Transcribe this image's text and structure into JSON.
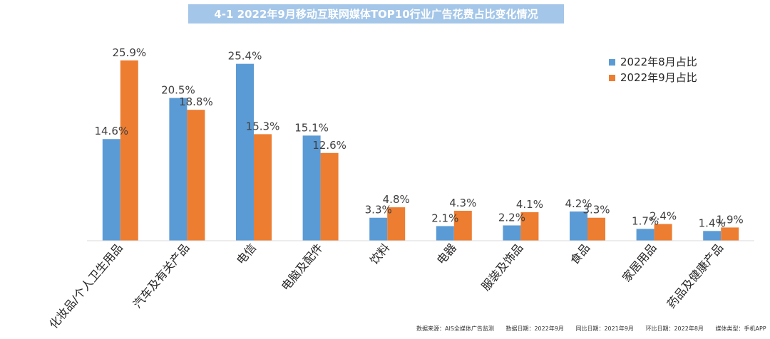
{
  "chart_data": {
    "type": "bar",
    "title": "4-1 2022年9月移动互联网媒体TOP10行业广告花费占比变化情况",
    "categories": [
      "化妆品/个人卫生用品",
      "汽车及有关产品",
      "电信",
      "电脑及配件",
      "饮料",
      "电器",
      "服装及饰品",
      "食品",
      "家居用品",
      "药品及健康产品"
    ],
    "series": [
      {
        "name": "2022年8月占比",
        "color": "#5b9bd5",
        "values": [
          14.6,
          20.5,
          25.4,
          15.1,
          3.3,
          2.1,
          2.2,
          4.2,
          1.7,
          1.4
        ]
      },
      {
        "name": "2022年9月占比",
        "color": "#ed7d31",
        "values": [
          25.9,
          18.8,
          15.3,
          12.6,
          4.8,
          4.3,
          4.1,
          3.3,
          2.4,
          1.9
        ]
      }
    ],
    "value_suffix": "%",
    "ylim": [
      0,
      27
    ],
    "grid": false,
    "legend_position": "top-right"
  },
  "footer": {
    "source": "数据来源：AIS全媒体广告监测",
    "data_date": "数据日期：2022年9月",
    "yoy_date": "同比日期：2021年9月",
    "mom_date": "环比日期：2022年8月",
    "media_type": "媒体类型：手机APP"
  }
}
